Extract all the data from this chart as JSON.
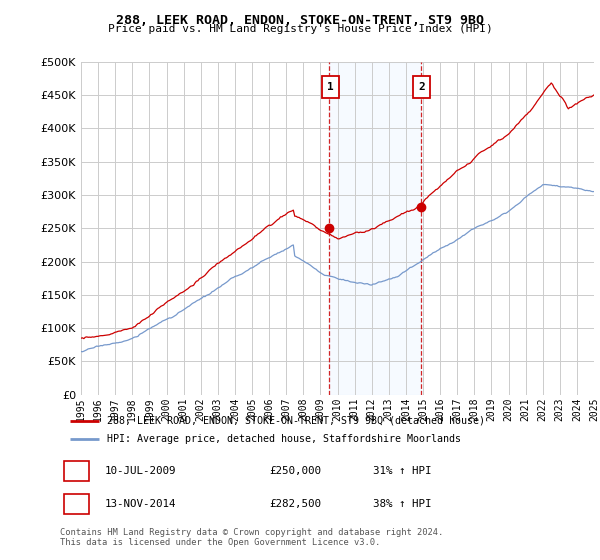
{
  "title": "288, LEEK ROAD, ENDON, STOKE-ON-TRENT, ST9 9BQ",
  "subtitle": "Price paid vs. HM Land Registry's House Price Index (HPI)",
  "legend_line1": "288, LEEK ROAD, ENDON, STOKE-ON-TRENT, ST9 9BQ (detached house)",
  "legend_line2": "HPI: Average price, detached house, Staffordshire Moorlands",
  "annotation1_date": "10-JUL-2009",
  "annotation1_price": "£250,000",
  "annotation1_hpi": "31% ↑ HPI",
  "annotation2_date": "13-NOV-2014",
  "annotation2_price": "£282,500",
  "annotation2_hpi": "38% ↑ HPI",
  "footer": "Contains HM Land Registry data © Crown copyright and database right 2024.\nThis data is licensed under the Open Government Licence v3.0.",
  "sale1_year": 2009.53,
  "sale1_value": 250000,
  "sale2_year": 2014.87,
  "sale2_value": 282500,
  "red_color": "#cc0000",
  "blue_color": "#7799cc",
  "annotation_box_color": "#cc0000",
  "vline_color": "#cc0000",
  "shade_color": "#ddeeff",
  "ylim_min": 0,
  "ylim_max": 500000,
  "xmin": 1995,
  "xmax": 2025,
  "background_color": "#ffffff",
  "grid_color": "#cccccc"
}
